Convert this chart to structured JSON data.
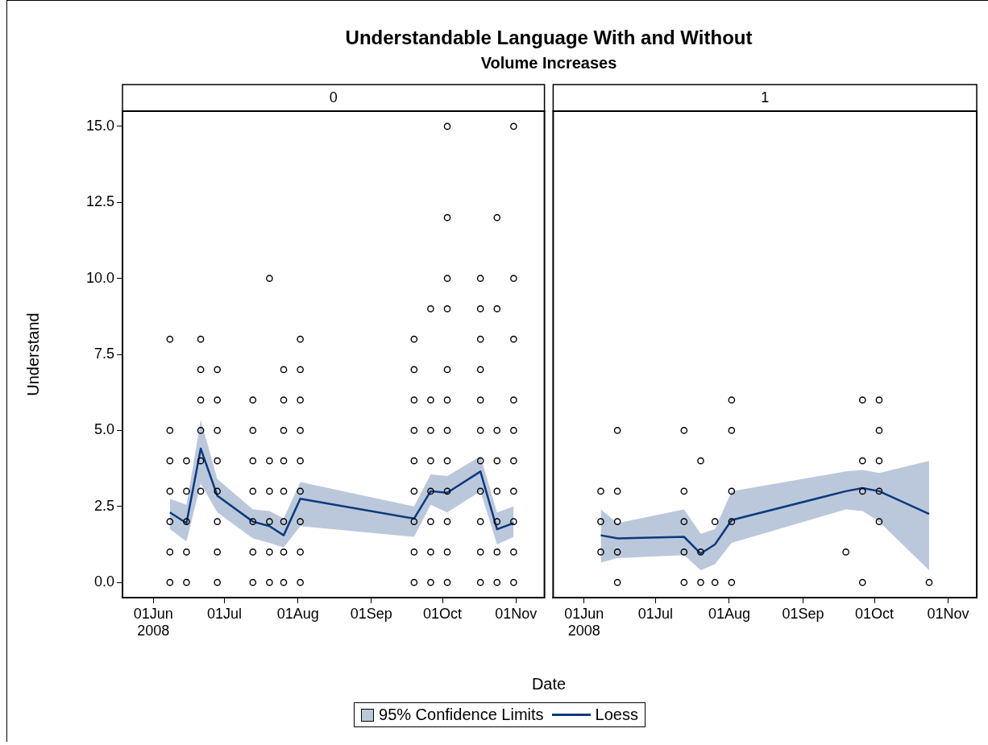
{
  "chart_data": [
    {
      "type": "scatter",
      "title": "Understandable Language With and Without",
      "subtitle": "Volume Increases",
      "xlabel": "Date",
      "ylabel": "Understand",
      "annotations": [
        "0",
        "95% Confidence Limits"
      ],
      "legend": "bottom",
      "xlim": [
        "2008-05-19",
        "2008-11-13"
      ],
      "xticks": [
        {
          "value": "2008-06-01",
          "label": "01Jun\n2008"
        },
        {
          "value": "2008-07-01",
          "label": "01Jul"
        },
        {
          "value": "2008-08-01",
          "label": "01Aug"
        },
        {
          "value": "2008-09-01",
          "label": "01Sep"
        },
        {
          "value": "2008-10-01",
          "label": "01Oct"
        },
        {
          "value": "2008-11-01",
          "label": "01Nov"
        }
      ],
      "ylim": [
        -0.5,
        15.5
      ],
      "yticks": [
        {
          "value": 0,
          "label": "0.0"
        },
        {
          "value": 2.5,
          "label": "2.5"
        },
        {
          "value": 5,
          "label": "5.0"
        },
        {
          "value": 7.5,
          "label": "7.5"
        },
        {
          "value": 10,
          "label": "10.0"
        },
        {
          "value": 12.5,
          "label": "12.5"
        },
        {
          "value": 15,
          "label": "15.0"
        }
      ],
      "series": [
        {
          "type": "line",
          "name": "Loess",
          "color": "#0b3a7e",
          "marker": "none",
          "x": [
            "2008-06-08",
            "2008-06-15",
            "2008-06-21",
            "2008-06-28",
            "2008-07-13",
            "2008-07-20",
            "2008-07-26",
            "2008-08-02",
            "2008-09-19",
            "2008-09-26",
            "2008-10-03",
            "2008-10-17",
            "2008-10-24",
            "2008-10-31"
          ],
          "values": [
            2.3,
            1.95,
            4.4,
            2.85,
            2.0,
            1.85,
            1.55,
            2.75,
            2.1,
            3.0,
            2.95,
            3.65,
            1.75,
            1.95
          ],
          "lower": [
            1.75,
            1.35,
            3.25,
            2.3,
            1.45,
            1.3,
            1.15,
            1.85,
            1.5,
            2.55,
            2.3,
            3.0,
            1.25,
            1.5
          ],
          "upper": [
            2.75,
            2.55,
            5.35,
            3.4,
            2.4,
            2.35,
            2.1,
            3.3,
            2.5,
            3.55,
            3.5,
            4.15,
            2.3,
            2.5
          ]
        },
        {
          "type": "scatter",
          "color": "#000000",
          "marker": "circle",
          "x": [
            "2008-06-08",
            "2008-06-08",
            "2008-06-08",
            "2008-06-08",
            "2008-06-08",
            "2008-06-08",
            "2008-06-08",
            "2008-06-15",
            "2008-06-15",
            "2008-06-15",
            "2008-06-15",
            "2008-06-15",
            "2008-06-21",
            "2008-06-21",
            "2008-06-21",
            "2008-06-21",
            "2008-06-21",
            "2008-06-21",
            "2008-06-28",
            "2008-06-28",
            "2008-06-28",
            "2008-06-28",
            "2008-06-28",
            "2008-06-28",
            "2008-06-28",
            "2008-06-28",
            "2008-07-13",
            "2008-07-13",
            "2008-07-13",
            "2008-07-13",
            "2008-07-13",
            "2008-07-13",
            "2008-07-13",
            "2008-07-20",
            "2008-07-20",
            "2008-07-20",
            "2008-07-20",
            "2008-07-20",
            "2008-07-20",
            "2008-07-26",
            "2008-07-26",
            "2008-07-26",
            "2008-07-26",
            "2008-07-26",
            "2008-07-26",
            "2008-07-26",
            "2008-07-26",
            "2008-08-02",
            "2008-08-02",
            "2008-08-02",
            "2008-08-02",
            "2008-08-02",
            "2008-08-02",
            "2008-08-02",
            "2008-08-02",
            "2008-08-02",
            "2008-09-19",
            "2008-09-19",
            "2008-09-19",
            "2008-09-19",
            "2008-09-19",
            "2008-09-19",
            "2008-09-19",
            "2008-09-19",
            "2008-09-19",
            "2008-09-26",
            "2008-09-26",
            "2008-09-26",
            "2008-09-26",
            "2008-09-26",
            "2008-09-26",
            "2008-09-26",
            "2008-09-26",
            "2008-10-03",
            "2008-10-03",
            "2008-10-03",
            "2008-10-03",
            "2008-10-03",
            "2008-10-03",
            "2008-10-03",
            "2008-10-03",
            "2008-10-03",
            "2008-10-03",
            "2008-10-03",
            "2008-10-03",
            "2008-10-17",
            "2008-10-17",
            "2008-10-17",
            "2008-10-17",
            "2008-10-17",
            "2008-10-17",
            "2008-10-17",
            "2008-10-17",
            "2008-10-17",
            "2008-10-17",
            "2008-10-17",
            "2008-10-24",
            "2008-10-24",
            "2008-10-24",
            "2008-10-24",
            "2008-10-24",
            "2008-10-24",
            "2008-10-24",
            "2008-10-24",
            "2008-10-31",
            "2008-10-31",
            "2008-10-31",
            "2008-10-31",
            "2008-10-31",
            "2008-10-31",
            "2008-10-31",
            "2008-10-31",
            "2008-10-31",
            "2008-10-31"
          ],
          "values": [
            8,
            5,
            4,
            3,
            2,
            1,
            0,
            4,
            3,
            2,
            1,
            0,
            8,
            7,
            6,
            5,
            4,
            3,
            7,
            6,
            5,
            4,
            3,
            2,
            1,
            0,
            6,
            5,
            4,
            3,
            2,
            1,
            0,
            10,
            4,
            3,
            2,
            1,
            0,
            7,
            6,
            5,
            4,
            3,
            2,
            1,
            0,
            8,
            7,
            6,
            5,
            4,
            3,
            2,
            1,
            0,
            8,
            7,
            6,
            5,
            4,
            3,
            2,
            1,
            0,
            9,
            6,
            5,
            4,
            3,
            2,
            1,
            0,
            15,
            12,
            10,
            9,
            7,
            6,
            5,
            4,
            3,
            2,
            1,
            0,
            10,
            9,
            8,
            7,
            6,
            5,
            4,
            3,
            2,
            1,
            0,
            12,
            9,
            5,
            4,
            3,
            2,
            1,
            0,
            15,
            10,
            8,
            6,
            5,
            4,
            3,
            2,
            1,
            0
          ]
        }
      ]
    },
    {
      "type": "scatter",
      "annotations": [
        "1"
      ],
      "tick_labels": "x",
      "xlim": [
        "2008-05-19",
        "2008-11-13"
      ],
      "xticks": [
        {
          "value": "2008-06-01",
          "label": "01Jun\n2008"
        },
        {
          "value": "2008-07-01",
          "label": "01Jul"
        },
        {
          "value": "2008-08-01",
          "label": "01Aug"
        },
        {
          "value": "2008-09-01",
          "label": "01Sep"
        },
        {
          "value": "2008-10-01",
          "label": "01Oct"
        },
        {
          "value": "2008-11-01",
          "label": "01Nov"
        }
      ],
      "ylim": [
        -0.5,
        15.5
      ],
      "series": [
        {
          "type": "line",
          "color": "#0b3a7e",
          "marker": "none",
          "x": [
            "2008-06-08",
            "2008-06-15",
            "2008-07-13",
            "2008-07-20",
            "2008-07-26",
            "2008-08-02",
            "2008-09-19",
            "2008-09-26",
            "2008-10-03",
            "2008-10-24"
          ],
          "values": [
            1.55,
            1.45,
            1.5,
            0.95,
            1.25,
            2.05,
            3.0,
            3.1,
            3.0,
            2.25
          ],
          "lower": [
            0.65,
            0.8,
            0.9,
            0.4,
            0.6,
            1.3,
            2.4,
            2.35,
            2.0,
            0.4
          ],
          "upper": [
            2.4,
            1.95,
            2.4,
            1.6,
            1.75,
            3.0,
            3.65,
            3.7,
            3.6,
            4.0
          ]
        },
        {
          "type": "scatter",
          "color": "#000000",
          "marker": "circle",
          "x": [
            "2008-06-08",
            "2008-06-08",
            "2008-06-08",
            "2008-06-15",
            "2008-06-15",
            "2008-06-15",
            "2008-06-15",
            "2008-06-15",
            "2008-07-13",
            "2008-07-13",
            "2008-07-13",
            "2008-07-13",
            "2008-07-13",
            "2008-07-20",
            "2008-07-20",
            "2008-07-20",
            "2008-07-26",
            "2008-07-26",
            "2008-08-02",
            "2008-08-02",
            "2008-08-02",
            "2008-08-02",
            "2008-08-02",
            "2008-09-19",
            "2008-09-26",
            "2008-09-26",
            "2008-09-26",
            "2008-09-26",
            "2008-10-03",
            "2008-10-03",
            "2008-10-03",
            "2008-10-03",
            "2008-10-03",
            "2008-10-24"
          ],
          "values": [
            3,
            2,
            1,
            5,
            3,
            2,
            1,
            0,
            5,
            3,
            2,
            1,
            0,
            4,
            1,
            0,
            2,
            0,
            6,
            5,
            3,
            2,
            0,
            1,
            6,
            4,
            3,
            0,
            6,
            5,
            4,
            3,
            2,
            0
          ]
        }
      ]
    }
  ]
}
